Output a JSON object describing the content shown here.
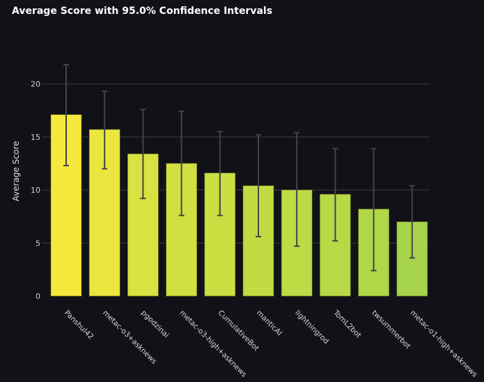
{
  "chart_data": {
    "type": "bar",
    "title": "Average Score with 95.0% Confidence Intervals",
    "xlabel": "",
    "ylabel": "Average Score",
    "ylim": [
      0,
      22
    ],
    "yticks": [
      0,
      5,
      10,
      15,
      20
    ],
    "grid": true,
    "categories": [
      "Panshul42",
      "metac-o3+asknews",
      "pgodzinai",
      "metac-o3-high+asknews",
      "CumulativeBot",
      "manticAI",
      "lightningrod",
      "TomL2bot",
      "twsummerbot",
      "metac-o1-high+asknews"
    ],
    "values": [
      17.1,
      15.7,
      13.4,
      12.5,
      11.6,
      10.4,
      10.0,
      9.6,
      8.2,
      7.0
    ],
    "ci_low": [
      12.3,
      12.0,
      9.2,
      7.6,
      7.6,
      5.6,
      4.7,
      5.2,
      2.4,
      3.6
    ],
    "ci_high": [
      21.8,
      19.3,
      17.6,
      17.4,
      15.5,
      15.2,
      15.4,
      13.9,
      13.9,
      10.4
    ],
    "colors": [
      "#f5e83c",
      "#eae63e",
      "#d8e240",
      "#d1e041",
      "#cadf42",
      "#c1dc43",
      "#bcdb44",
      "#b7d945",
      "#b0d746",
      "#a6d44a"
    ]
  }
}
